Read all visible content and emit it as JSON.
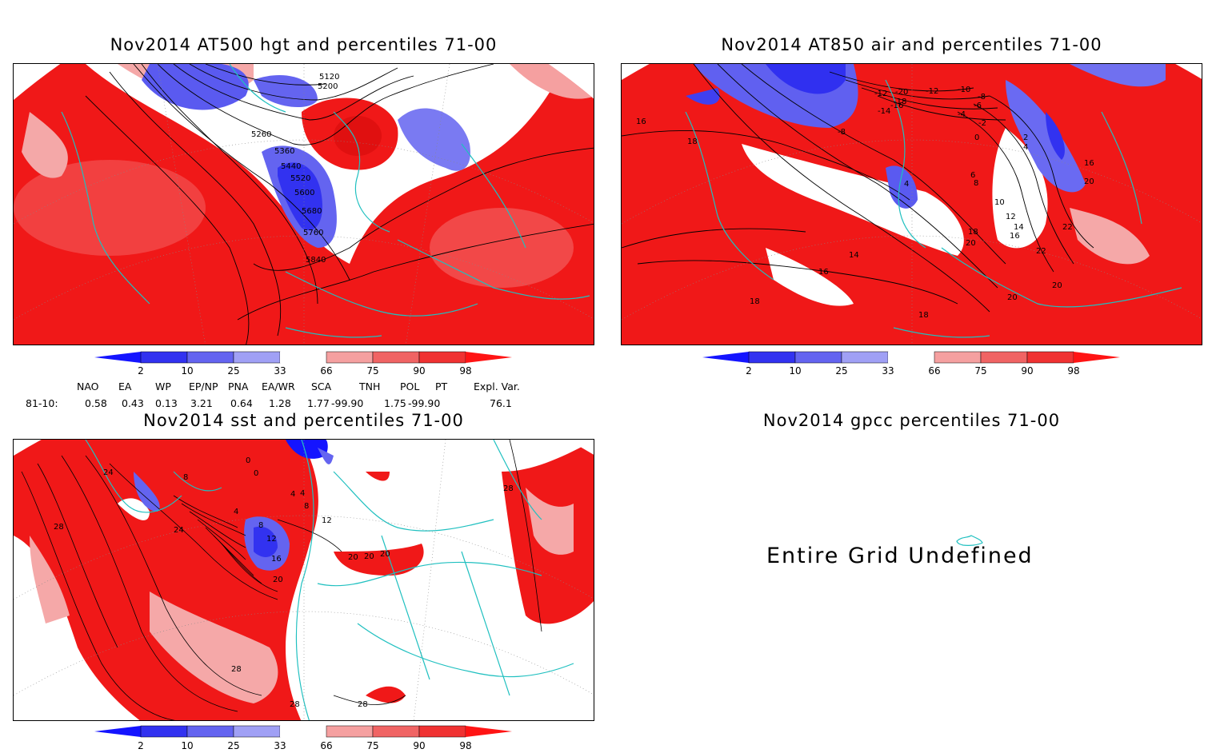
{
  "panels": {
    "hgt": {
      "title": "Nov2014 AT500 hgt and percentiles 71-00",
      "contour_labels": [
        "5120",
        "5200",
        "5260",
        "5360",
        "5440",
        "5520",
        "5600",
        "5680",
        "5760",
        "5840"
      ]
    },
    "air": {
      "title": "Nov2014 AT850 air and percentiles 71-00",
      "contour_labels": [
        "-20",
        "-18",
        "-16",
        "-14",
        "-12",
        "-12",
        "-10",
        "-8",
        "-8",
        "-6",
        "-4",
        "-2",
        "0",
        "2",
        "4",
        "4",
        "6",
        "8",
        "10",
        "12",
        "14",
        "16",
        "16",
        "16",
        "18",
        "18",
        "18",
        "18",
        "20",
        "20",
        "20",
        "20",
        "22",
        "22",
        "14",
        "16"
      ]
    },
    "sst": {
      "title": "Nov2014 sst and percentiles 71-00",
      "contour_labels": [
        "24",
        "8",
        "0",
        "0",
        "4",
        "4",
        "8",
        "12",
        "4",
        "8",
        "12",
        "24",
        "28",
        "16",
        "20",
        "20",
        "20",
        "20",
        "28",
        "28",
        "28",
        "28"
      ]
    },
    "gpcc": {
      "title": "Nov2014 gpcc percentiles 71-00",
      "message": "Entire Grid Undefined"
    }
  },
  "colorbar": {
    "ticks": [
      "2",
      "10",
      "25",
      "33",
      "66",
      "75",
      "90",
      "98"
    ],
    "colors": [
      "#1414ff",
      "#3232f0",
      "#6464f0",
      "#a0a0f5",
      "#ffffff",
      "#f5a0a0",
      "#f06464",
      "#f03232",
      "#ff1414"
    ]
  },
  "indices": {
    "headers": [
      "NAO",
      "EA",
      "WP",
      "EP/NP",
      "PNA",
      "EA/WR",
      "SCA",
      "TNH",
      "POL",
      "PT",
      "Expl. Var."
    ],
    "row_label": "81-10:",
    "values": [
      "0.58",
      "0.43",
      "0.13",
      "3.21",
      "0.64",
      "1.28",
      "1.77",
      "-99.90",
      "1.75",
      "-99.90",
      "76.1"
    ]
  }
}
